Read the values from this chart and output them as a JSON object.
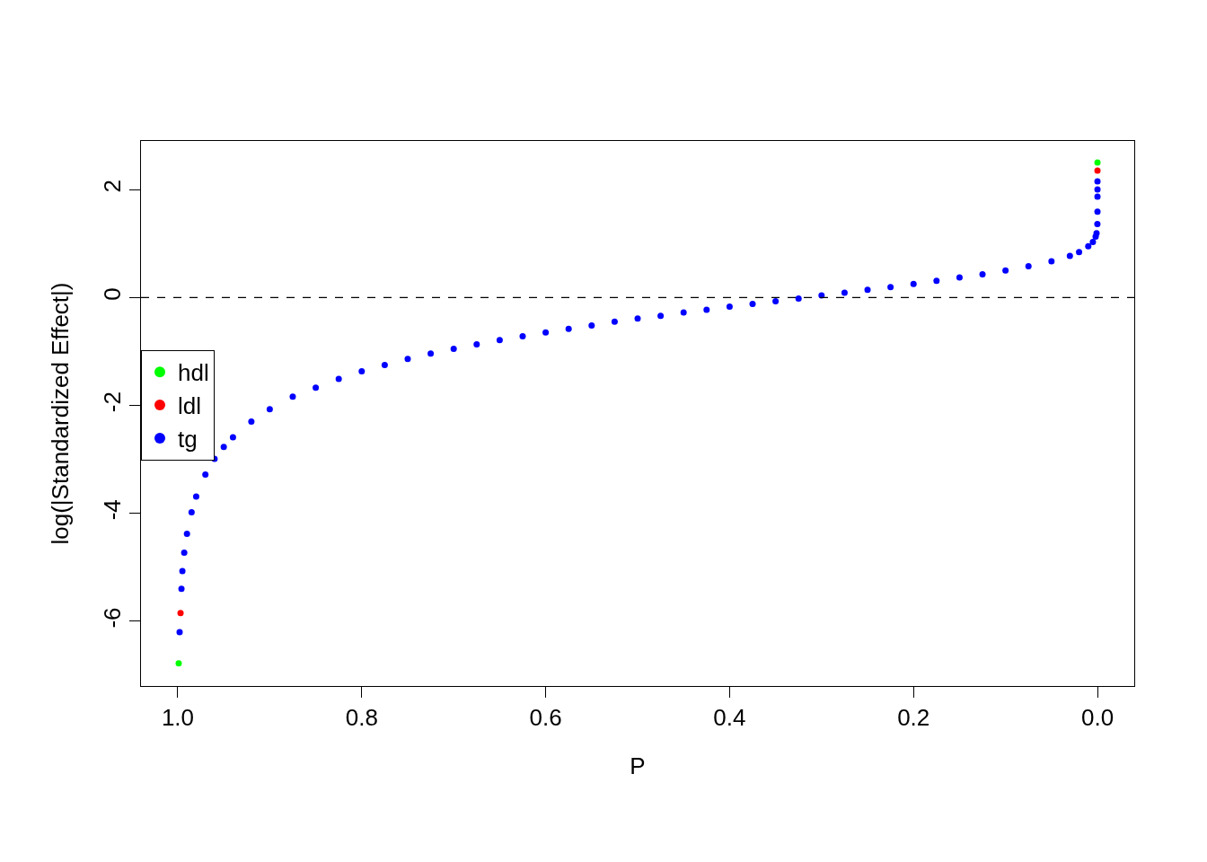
{
  "chart_data": {
    "type": "scatter",
    "xlabel": "P",
    "ylabel": "log(|Standardized Effect|)",
    "xlim": [
      1.04,
      -0.04
    ],
    "xticks": [
      {
        "value": 1,
        "label": "1.0"
      },
      0.8,
      0.6,
      0.4,
      0.2,
      {
        "value": 0,
        "label": "0.0"
      }
    ],
    "ylim": [
      -7.2,
      2.9
    ],
    "yticks": [
      -6,
      -4,
      -2,
      0,
      2
    ],
    "series": [
      {
        "name": "hdl",
        "color": "#00ff00",
        "x": [
          0.999,
          0.0
        ],
        "values": [
          -6.78,
          2.5
        ]
      },
      {
        "name": "ldl",
        "color": "#ff0000",
        "x": [
          0.997,
          0.0
        ],
        "values": [
          -5.85,
          2.35
        ]
      },
      {
        "name": "tg",
        "color": "#0000ff",
        "x": [
          0.998,
          0.996,
          0.995,
          0.993,
          0.99,
          0.985,
          0.98,
          0.97,
          0.96,
          0.95,
          0.94,
          0.92,
          0.9,
          0.875,
          0.85,
          0.825,
          0.8,
          0.775,
          0.75,
          0.725,
          0.7,
          0.675,
          0.65,
          0.625,
          0.6,
          0.575,
          0.55,
          0.525,
          0.5,
          0.475,
          0.45,
          0.425,
          0.4,
          0.375,
          0.35,
          0.325,
          0.3,
          0.275,
          0.25,
          0.225,
          0.2,
          0.175,
          0.15,
          0.125,
          0.1,
          0.075,
          0.05,
          0.03,
          0.02,
          0.01,
          0.005,
          0.002,
          0.001,
          0.0001,
          0.0,
          0.0,
          0.0,
          0.0
        ],
        "values": [
          -6.2,
          -5.4,
          -5.07,
          -4.73,
          -4.38,
          -3.98,
          -3.69,
          -3.28,
          -2.99,
          -2.77,
          -2.59,
          -2.3,
          -2.07,
          -1.84,
          -1.67,
          -1.51,
          -1.37,
          -1.25,
          -1.14,
          -1.04,
          -0.95,
          -0.87,
          -0.79,
          -0.72,
          -0.65,
          -0.58,
          -0.52,
          -0.45,
          -0.39,
          -0.34,
          -0.28,
          -0.23,
          -0.17,
          -0.12,
          -0.07,
          -0.02,
          0.04,
          0.09,
          0.14,
          0.19,
          0.25,
          0.31,
          0.37,
          0.43,
          0.5,
          0.58,
          0.67,
          0.77,
          0.84,
          0.95,
          1.03,
          1.13,
          1.19,
          1.36,
          1.59,
          1.87,
          2.0,
          2.15
        ]
      }
    ],
    "ref_lines": [
      {
        "axis": "y",
        "value": 0,
        "color": "#000000",
        "line_style": "dashed"
      }
    ],
    "marker": "circle",
    "legend": "left"
  }
}
